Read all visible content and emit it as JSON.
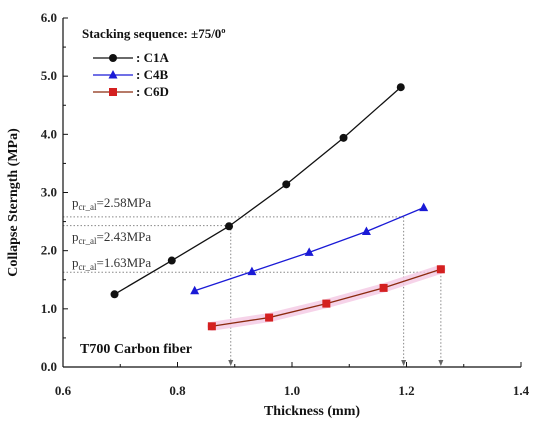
{
  "chart_data": {
    "type": "line",
    "title": "Stacking sequence: ±75/0º",
    "xlabel": "Thickness (mm)",
    "ylabel": "Collapse Sterngth (MPa)",
    "xlim": [
      0.6,
      1.4
    ],
    "ylim": [
      0.0,
      6.0
    ],
    "x_ticks": [
      "0.6",
      "0.8",
      "1.0",
      "1.2",
      "1.4"
    ],
    "y_ticks": [
      "0.0",
      "1.0",
      "2.0",
      "3.0",
      "4.0",
      "5.0",
      "6.0"
    ],
    "grid": false,
    "legend_position": "top-left",
    "series": [
      {
        "name": ": C1A",
        "color": "#111111",
        "marker": "circle",
        "x": [
          0.69,
          0.79,
          0.89,
          0.99,
          1.09,
          1.19
        ],
        "y": [
          1.25,
          1.83,
          2.42,
          3.14,
          3.94,
          4.81
        ]
      },
      {
        "name": ": C4B",
        "color": "#1a1ad6",
        "marker": "triangle",
        "x": [
          0.83,
          0.93,
          1.03,
          1.13,
          1.23
        ],
        "y": [
          1.31,
          1.64,
          1.97,
          2.33,
          2.74
        ]
      },
      {
        "name": ": C6D",
        "color": "#8b2a0f",
        "marker_color": "#d42020",
        "marker": "square",
        "x": [
          0.86,
          0.96,
          1.06,
          1.16,
          1.26
        ],
        "y": [
          0.7,
          0.85,
          1.09,
          1.36,
          1.68
        ]
      }
    ],
    "reference_lines": [
      {
        "y": 2.58,
        "x": 1.195,
        "label_main": "p",
        "label_sub": "cr_al",
        "label_tail": "=2.58MPa"
      },
      {
        "y": 2.43,
        "x": 0.893,
        "label_main": "p",
        "label_sub": "cr_al",
        "label_tail": "=2.43MPa"
      },
      {
        "y": 1.63,
        "x": 1.26,
        "label_main": "p",
        "label_sub": "cr_al",
        "label_tail": "=1.63MPa"
      }
    ],
    "annotation": "T700 Carbon fiber"
  }
}
